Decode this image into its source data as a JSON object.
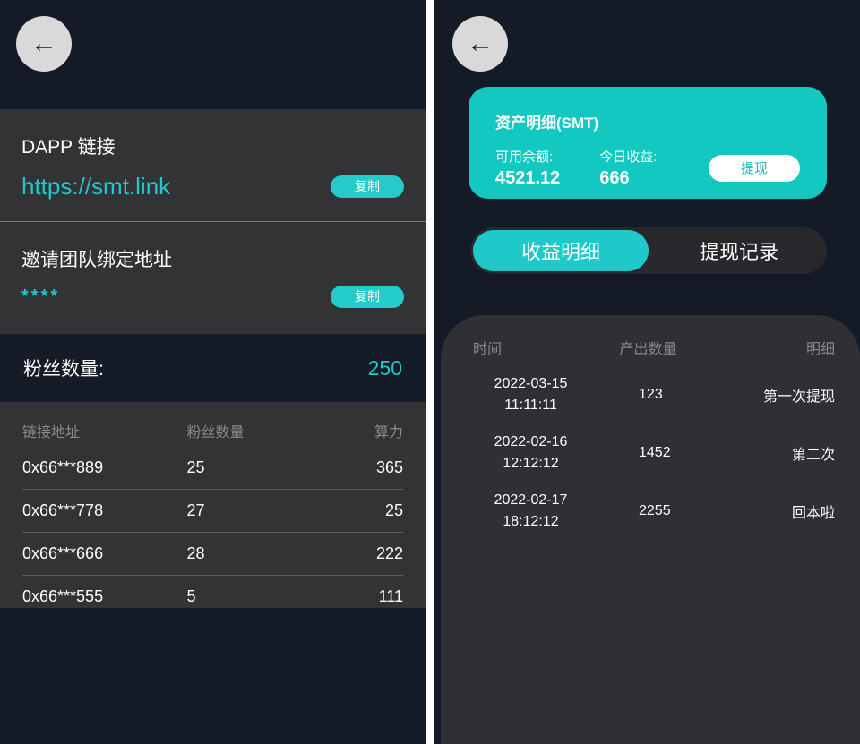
{
  "colors": {
    "accent_teal": "#1fc9c9",
    "card_teal": "#12c8c0",
    "background_navy": "#141b26",
    "section_gray": "#333336"
  },
  "left": {
    "back_icon": "←",
    "dapp": {
      "title": "DAPP 链接",
      "link": "https://smt.link",
      "copy": "复制"
    },
    "invite": {
      "title": "邀请团队绑定地址",
      "masked": "****",
      "copy": "复制"
    },
    "fans": {
      "label": "粉丝数量:",
      "value": "250"
    },
    "table": {
      "headers": [
        "链接地址",
        "粉丝数量",
        "算力"
      ],
      "rows": [
        {
          "addr": "0x66***889",
          "fans": "25",
          "power": "365"
        },
        {
          "addr": "0x66***778",
          "fans": "27",
          "power": "25"
        },
        {
          "addr": "0x66***666",
          "fans": "28",
          "power": "222"
        },
        {
          "addr": "0x66***555",
          "fans": "5",
          "power": "111"
        }
      ]
    }
  },
  "right": {
    "back_icon": "←",
    "card": {
      "title": "资产明细(SMT)",
      "balance_label": "可用余额:",
      "balance_value": "4521.12",
      "income_label": "今日收益:",
      "income_value": "666",
      "withdraw": "提现"
    },
    "tabs": {
      "income": "收益明细",
      "withdraw": "提现记录"
    },
    "table": {
      "headers": [
        "时间",
        "产出数量",
        "明细"
      ],
      "rows": [
        {
          "date": "2022-03-15",
          "time": "11:11:11",
          "amount": "123",
          "detail": "第一次提现"
        },
        {
          "date": "2022-02-16",
          "time": "12:12:12",
          "amount": "1452",
          "detail": "第二次"
        },
        {
          "date": "2022-02-17",
          "time": "18:12:12",
          "amount": "2255",
          "detail": "回本啦"
        }
      ]
    }
  }
}
